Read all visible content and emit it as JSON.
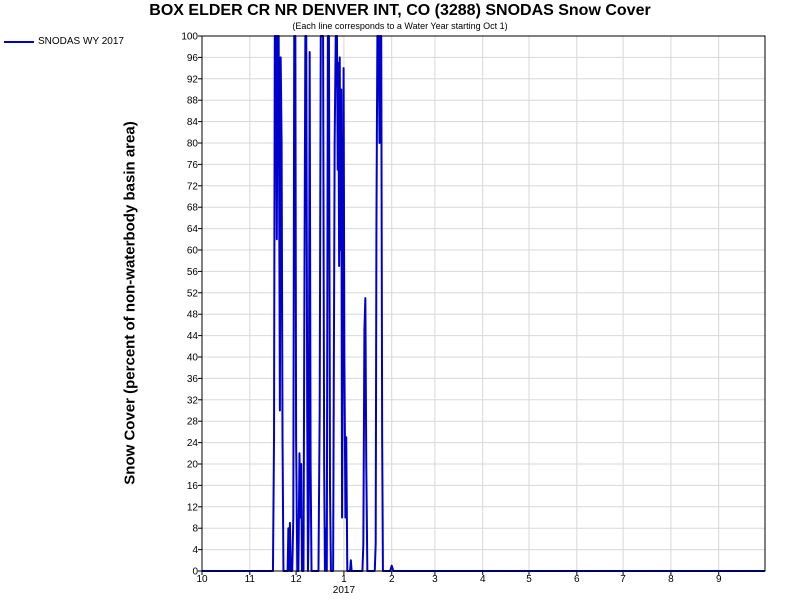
{
  "chart_data": {
    "type": "line",
    "title": "BOX ELDER CR NR DENVER INT, CO (3288) SNODAS Snow Cover",
    "subtitle": "(Each line corresponds to a Water Year starting Oct 1)",
    "ylabel": "Snow Cover (percent of non-waterbody basin area)",
    "xlabel": "",
    "ylim": [
      0,
      100
    ],
    "yticks": [
      0,
      4,
      8,
      12,
      16,
      20,
      24,
      28,
      32,
      36,
      40,
      44,
      48,
      52,
      56,
      60,
      64,
      68,
      72,
      76,
      80,
      84,
      88,
      92,
      96,
      100
    ],
    "xlim": [
      0,
      365
    ],
    "xticks": [
      {
        "day": 0,
        "label": "10"
      },
      {
        "day": 31,
        "label": "11"
      },
      {
        "day": 61,
        "label": "12"
      },
      {
        "day": 92,
        "label": "1"
      },
      {
        "day": 123,
        "label": "2"
      },
      {
        "day": 151,
        "label": "3"
      },
      {
        "day": 182,
        "label": "4"
      },
      {
        "day": 212,
        "label": "5"
      },
      {
        "day": 243,
        "label": "6"
      },
      {
        "day": 273,
        "label": "7"
      },
      {
        "day": 304,
        "label": "8"
      },
      {
        "day": 335,
        "label": "9"
      }
    ],
    "year_label": "2017",
    "grid": true,
    "legend_position": "top-left",
    "series": [
      {
        "name": "SNODAS WY 2017",
        "color": "#0000cc",
        "points": [
          [
            0,
            0
          ],
          [
            30,
            0
          ],
          [
            46,
            0
          ],
          [
            46.7,
            25
          ],
          [
            47.2,
            100
          ],
          [
            48,
            100
          ],
          [
            48.5,
            62
          ],
          [
            49,
            100
          ],
          [
            49.7,
            100
          ],
          [
            50.5,
            30
          ],
          [
            51,
            96
          ],
          [
            51.6,
            80
          ],
          [
            52.2,
            25
          ],
          [
            52.8,
            0
          ],
          [
            55.5,
            0
          ],
          [
            56,
            8
          ],
          [
            56.5,
            0
          ],
          [
            57,
            9
          ],
          [
            57.5,
            0
          ],
          [
            58.5,
            0
          ],
          [
            59.2,
            10
          ],
          [
            59.8,
            100
          ],
          [
            60.5,
            100
          ],
          [
            61,
            25
          ],
          [
            61.8,
            0
          ],
          [
            62.5,
            0
          ],
          [
            63.2,
            22
          ],
          [
            63.8,
            10
          ],
          [
            64.3,
            20
          ],
          [
            64.8,
            0
          ],
          [
            65.8,
            0
          ],
          [
            66.5,
            60
          ],
          [
            67,
            100
          ],
          [
            67.6,
            100
          ],
          [
            68.2,
            30
          ],
          [
            68.7,
            0
          ],
          [
            69.2,
            10
          ],
          [
            69.8,
            97
          ],
          [
            70.4,
            20
          ],
          [
            71,
            0
          ],
          [
            72.5,
            0
          ],
          [
            75.5,
            0
          ],
          [
            76.3,
            30
          ],
          [
            77,
            100
          ],
          [
            77.8,
            100
          ],
          [
            78.5,
            100
          ],
          [
            79.2,
            20
          ],
          [
            79.7,
            0
          ],
          [
            80.3,
            8
          ],
          [
            80.9,
            0
          ],
          [
            81.6,
            100
          ],
          [
            82.3,
            100
          ],
          [
            83,
            15
          ],
          [
            83.6,
            0
          ],
          [
            85,
            0
          ],
          [
            86,
            80
          ],
          [
            86.7,
            100
          ],
          [
            87.5,
            100
          ],
          [
            88,
            75
          ],
          [
            88.4,
            95
          ],
          [
            88.9,
            57
          ],
          [
            89.3,
            96
          ],
          [
            89.8,
            60
          ],
          [
            90.3,
            90
          ],
          [
            90.8,
            10
          ],
          [
            91.3,
            50
          ],
          [
            91.8,
            94
          ],
          [
            92.3,
            40
          ],
          [
            93,
            10
          ],
          [
            93.5,
            25
          ],
          [
            94.2,
            0
          ],
          [
            96,
            0
          ],
          [
            96.5,
            2
          ],
          [
            97,
            0
          ],
          [
            104,
            0
          ],
          [
            104.6,
            5
          ],
          [
            105.3,
            45
          ],
          [
            105.9,
            51
          ],
          [
            106.5,
            20
          ],
          [
            107.2,
            0
          ],
          [
            112,
            0
          ],
          [
            112.6,
            5
          ],
          [
            113.1,
            65
          ],
          [
            113.7,
            100
          ],
          [
            114.5,
            100
          ],
          [
            115.1,
            80
          ],
          [
            115.6,
            100
          ],
          [
            116.2,
            100
          ],
          [
            116.8,
            25
          ],
          [
            117.3,
            0
          ],
          [
            122,
            0
          ],
          [
            123,
            1
          ],
          [
            124,
            0
          ],
          [
            365,
            0
          ]
        ]
      }
    ]
  }
}
